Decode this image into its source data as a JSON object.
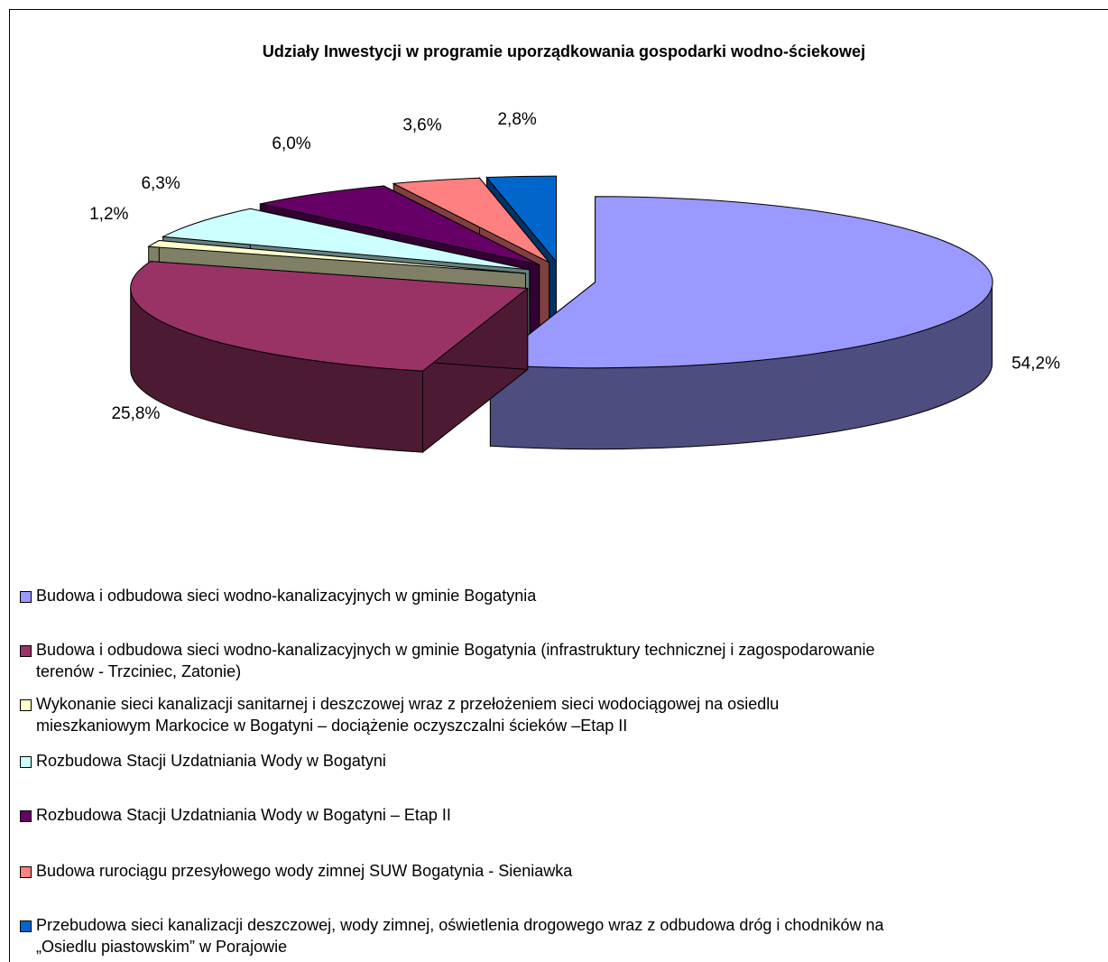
{
  "chart_data": {
    "type": "pie",
    "title": "Udziały Inwestycji w programie uporządkowania gospodarki wodno-ściekowej",
    "categories": [
      "Budowa i odbudowa sieci wodno-kanalizacyjnych w gminie Bogatynia",
      "Budowa i odbudowa sieci wodno-kanalizacyjnych w gminie Bogatynia (infrastruktury technicznej i zagospodarowanie\nterenów - Trzciniec, Zatonie)",
      "Wykonanie sieci kanalizacji sanitarnej i deszczowej wraz z przełożeniem sieci wodociągowej na osiedlu\nmieszkaniowym Markocice w Bogatyni – dociążenie oczyszczalni ścieków –Etap II",
      "Rozbudowa Stacji Uzdatniania Wody w Bogatyni",
      "Rozbudowa Stacji Uzdatniania Wody w Bogatyni – Etap II",
      "Budowa rurociągu przesyłowego wody zimnej SUW Bogatynia - Sieniawka",
      "Przebudowa sieci kanalizacji deszczowej, wody zimnej, oświetlenia drogowego wraz z odbudowa dróg i chodników na\n„Osiedlu piastowskim” w Porajowie"
    ],
    "values": [
      54.2,
      25.8,
      1.2,
      6.3,
      6.0,
      3.6,
      2.8
    ],
    "value_labels": [
      "54,2%",
      "25,8%",
      "1,2%",
      "6,3%",
      "6,0%",
      "3,6%",
      "2,8%"
    ],
    "colors": [
      "#9999ff",
      "#993366",
      "#ffffcc",
      "#ccffff",
      "#660066",
      "#ff8080",
      "#0066cc"
    ]
  }
}
